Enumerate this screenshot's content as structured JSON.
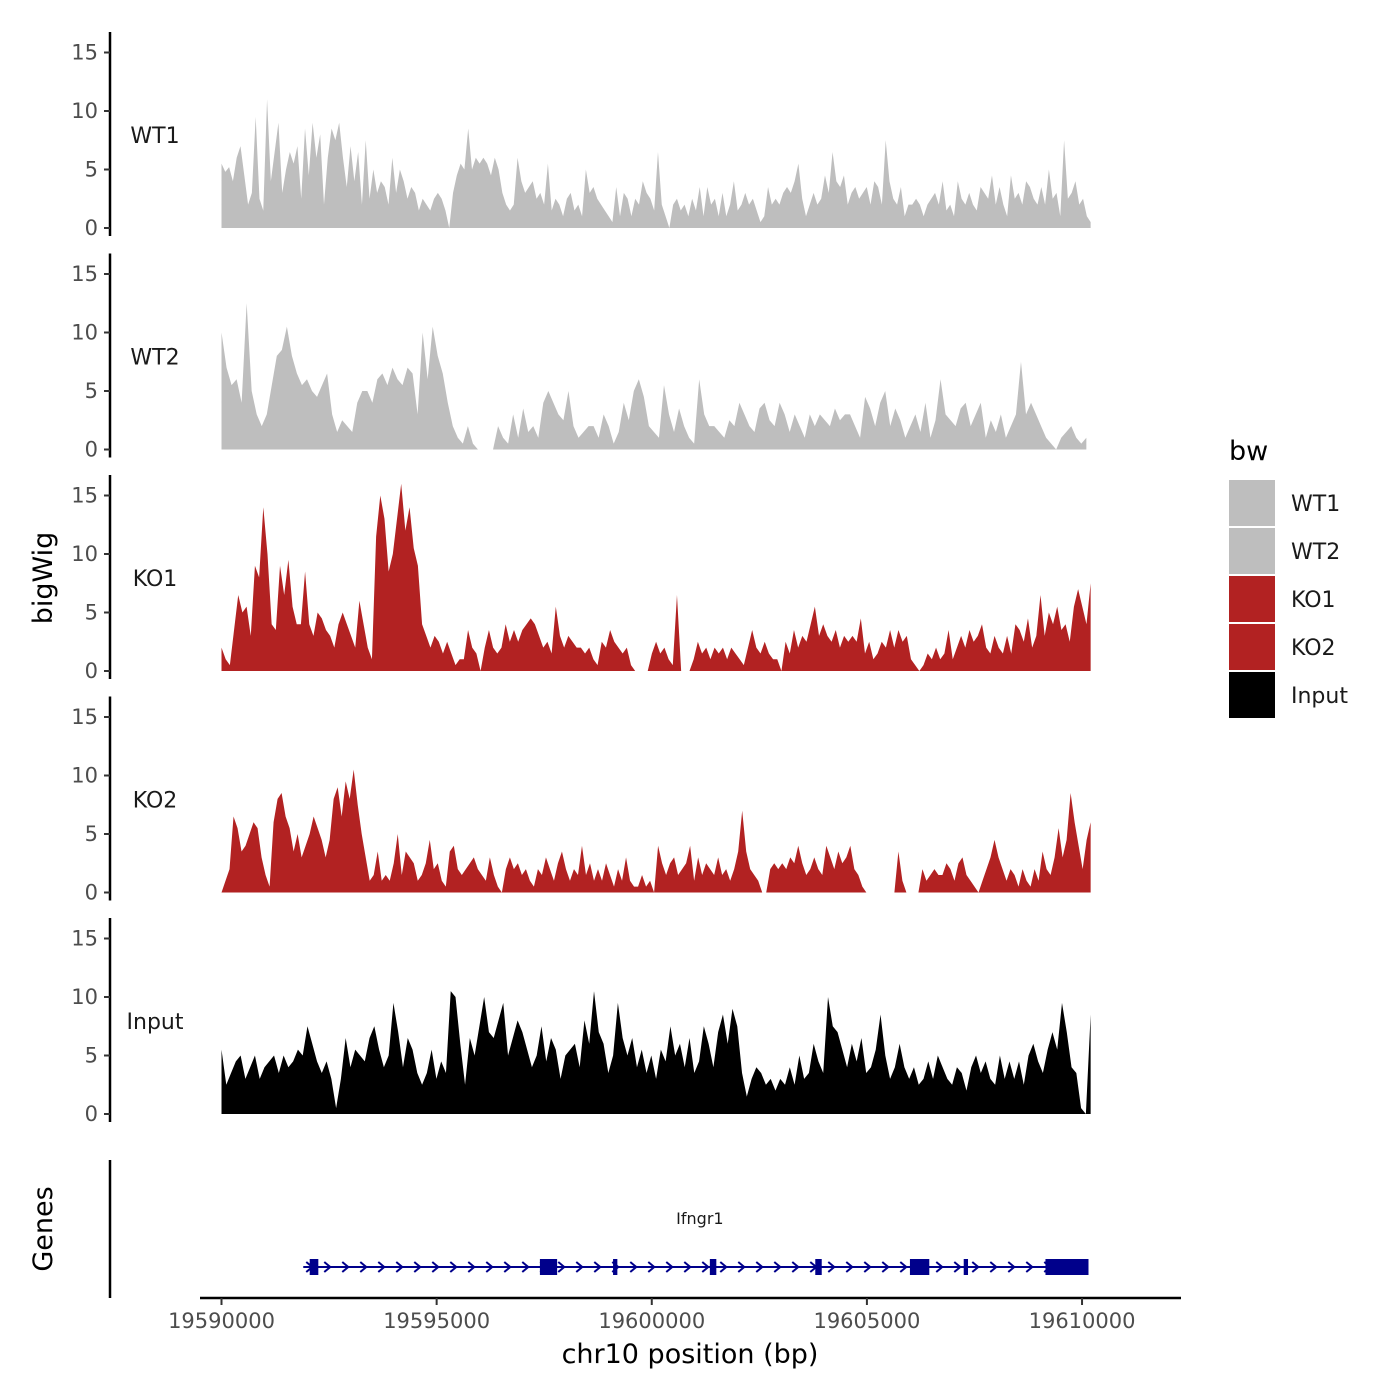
{
  "chart_data": {
    "type": "area",
    "region": "chr10",
    "xlabel": "chr10 position (bp)",
    "ylabel": "bigWig",
    "genes_panel_label": "Genes",
    "xlim": [
      19589500,
      19612300
    ],
    "x_ticks": [
      19590000,
      19595000,
      19600000,
      19605000,
      19610000
    ],
    "x_tick_labels": [
      "19590000",
      "19595000",
      "19600000",
      "19605000",
      "19610000"
    ],
    "ylim": [
      0,
      16.5
    ],
    "y_ticks": [
      0,
      5,
      10,
      15
    ],
    "y_tick_labels": [
      "0",
      "5",
      "10",
      "15"
    ],
    "grid": false,
    "legend": {
      "title": "bw",
      "position": "right",
      "entries": [
        {
          "label": "WT1",
          "color": "#bebebe"
        },
        {
          "label": "WT2",
          "color": "#bebebe"
        },
        {
          "label": "KO1",
          "color": "#b22222"
        },
        {
          "label": "KO2",
          "color": "#b22222"
        },
        {
          "label": "Input",
          "color": "#000000"
        }
      ]
    },
    "series": [
      {
        "name": "WT1",
        "color": "#bebebe",
        "x_start": 19590000,
        "x_end": 19610200,
        "values": [
          5.5,
          4.8,
          5.2,
          4.0,
          6.0,
          7.0,
          4.5,
          2.0,
          3.0,
          9.5,
          2.5,
          1.5,
          11.0,
          4.0,
          6.5,
          9.0,
          3.0,
          5.0,
          6.5,
          5.5,
          7.0,
          2.5,
          8.5,
          4.5,
          9.0,
          6.0,
          8.0,
          2.0,
          6.0,
          8.5,
          7.5,
          9.0,
          6.0,
          3.5,
          7.0,
          4.0,
          6.5,
          2.0,
          7.5,
          2.5,
          5.0,
          3.0,
          4.0,
          3.5,
          2.0,
          6.0,
          3.0,
          5.0,
          4.0,
          2.5,
          3.5,
          3.0,
          1.5,
          2.5,
          2.0,
          1.5,
          2.5,
          3.0,
          2.5,
          1.5,
          0.0,
          3.0,
          4.5,
          5.5,
          5.0,
          8.5,
          5.0,
          6.0,
          5.5,
          6.0,
          5.5,
          4.5,
          6.0,
          5.0,
          3.0,
          2.0,
          1.5,
          2.0,
          6.0,
          4.0,
          3.0,
          3.5,
          4.0,
          2.5,
          3.0,
          2.0,
          5.5,
          1.5,
          2.5,
          2.0,
          1.0,
          2.5,
          3.0,
          1.5,
          2.0,
          1.0,
          5.0,
          3.0,
          3.5,
          2.5,
          2.0,
          1.5,
          1.0,
          0.5,
          3.5,
          1.0,
          3.0,
          2.5,
          1.0,
          2.5,
          2.0,
          4.0,
          3.0,
          2.5,
          1.5,
          6.5,
          2.0,
          1.0,
          0.0,
          2.0,
          2.5,
          1.5,
          2.0,
          1.0,
          2.5,
          1.5,
          3.5,
          1.0,
          3.5,
          2.0,
          2.5,
          1.0,
          3.0,
          1.0,
          2.0,
          4.0,
          1.5,
          2.0,
          3.0,
          2.0,
          2.5,
          1.5,
          0.5,
          1.0,
          3.5,
          2.0,
          2.5,
          2.0,
          3.0,
          3.5,
          3.0,
          4.0,
          5.5,
          2.5,
          1.0,
          2.0,
          3.0,
          2.0,
          2.5,
          4.5,
          3.0,
          6.5,
          4.0,
          3.5,
          4.5,
          2.0,
          3.0,
          3.5,
          2.5,
          3.0,
          3.5,
          2.0,
          4.0,
          3.5,
          2.0,
          7.5,
          4.0,
          2.5,
          2.0,
          3.5,
          1.0,
          2.0,
          2.0,
          2.5,
          2.0,
          1.0,
          2.0,
          2.5,
          3.0,
          2.0,
          4.0,
          1.5,
          2.0,
          1.0,
          4.0,
          2.5,
          2.0,
          3.0,
          2.0,
          1.5,
          3.5,
          3.0,
          2.5,
          4.5,
          2.0,
          3.5,
          2.0,
          1.0,
          4.5,
          2.5,
          3.0,
          2.0,
          4.0,
          3.5,
          2.5,
          2.0,
          3.5,
          2.0,
          5.0,
          2.5,
          3.0,
          1.0,
          7.5,
          2.5,
          3.0,
          4.0,
          2.0,
          2.5,
          1.0,
          0.5
        ]
      },
      {
        "name": "WT2",
        "color": "#bebebe",
        "x_start": 19590000,
        "x_end": 19610100,
        "values": [
          10.0,
          7.0,
          5.5,
          6.0,
          4.0,
          12.5,
          5.0,
          3.0,
          2.0,
          3.0,
          5.5,
          8.0,
          8.5,
          10.5,
          8.0,
          6.5,
          5.5,
          6.0,
          5.0,
          4.5,
          5.5,
          6.5,
          3.0,
          1.5,
          2.5,
          2.0,
          1.5,
          4.0,
          5.0,
          5.0,
          4.0,
          6.0,
          6.5,
          5.5,
          7.0,
          6.0,
          5.5,
          7.0,
          6.5,
          3.0,
          10.0,
          6.0,
          10.5,
          8.0,
          6.5,
          4.0,
          2.0,
          1.0,
          0.5,
          2.0,
          0.5,
          0.0,
          0.0,
          0.0,
          0.0,
          2.0,
          1.0,
          0.5,
          3.0,
          1.0,
          3.5,
          1.5,
          2.0,
          1.0,
          4.0,
          5.0,
          4.0,
          3.0,
          2.5,
          5.0,
          2.0,
          1.0,
          1.5,
          2.0,
          2.0,
          1.0,
          3.0,
          2.0,
          0.5,
          1.5,
          4.0,
          2.5,
          5.0,
          6.0,
          4.5,
          2.0,
          1.5,
          1.0,
          5.5,
          3.0,
          1.5,
          3.5,
          2.0,
          1.0,
          0.5,
          6.0,
          3.0,
          2.0,
          2.0,
          1.5,
          1.0,
          2.5,
          2.0,
          4.0,
          3.0,
          2.0,
          1.5,
          3.5,
          4.0,
          2.5,
          2.0,
          4.0,
          3.0,
          1.5,
          3.0,
          2.0,
          1.0,
          3.0,
          2.0,
          3.0,
          2.5,
          2.0,
          3.5,
          2.5,
          3.0,
          3.0,
          2.0,
          1.0,
          4.5,
          3.5,
          2.0,
          4.0,
          5.0,
          2.0,
          3.5,
          2.5,
          1.0,
          2.0,
          3.0,
          1.5,
          4.0,
          1.0,
          2.5,
          6.0,
          3.0,
          2.5,
          2.0,
          3.5,
          4.0,
          2.0,
          3.0,
          4.0,
          1.0,
          2.5,
          1.5,
          3.0,
          1.0,
          2.0,
          3.0,
          7.5,
          3.0,
          4.0,
          3.0,
          2.0,
          1.0,
          0.5,
          0.0,
          1.0,
          1.5,
          2.0,
          1.0,
          0.5,
          1.0
        ]
      },
      {
        "name": "KO1",
        "color": "#b22222",
        "x_start": 19590000,
        "x_end": 19610200,
        "values": [
          2.0,
          1.0,
          0.5,
          3.5,
          6.5,
          5.0,
          5.5,
          3.0,
          9.0,
          8.0,
          14.0,
          10.0,
          4.0,
          3.5,
          9.0,
          6.5,
          9.5,
          5.5,
          4.0,
          4.0,
          8.5,
          4.0,
          3.0,
          5.0,
          4.5,
          3.5,
          3.0,
          2.0,
          4.0,
          5.0,
          4.0,
          3.0,
          2.0,
          6.0,
          4.0,
          2.0,
          1.0,
          11.5,
          15.0,
          13.0,
          8.5,
          10.0,
          13.0,
          16.0,
          12.0,
          14.0,
          10.5,
          9.0,
          4.0,
          3.0,
          2.0,
          3.0,
          2.5,
          1.5,
          2.5,
          1.5,
          0.5,
          1.0,
          1.0,
          3.5,
          2.0,
          1.5,
          0.0,
          2.0,
          3.5,
          2.0,
          1.5,
          2.0,
          4.0,
          2.5,
          3.5,
          2.5,
          3.5,
          4.0,
          4.5,
          4.0,
          3.0,
          2.0,
          2.5,
          1.5,
          5.5,
          3.0,
          2.0,
          3.0,
          2.5,
          2.0,
          2.0,
          1.5,
          2.0,
          1.0,
          0.5,
          2.5,
          2.0,
          3.5,
          2.5,
          2.0,
          1.5,
          2.0,
          0.5,
          0.0,
          0.0,
          0.0,
          0.0,
          1.5,
          2.5,
          1.5,
          2.0,
          1.0,
          0.5,
          6.5,
          0.0,
          0.0,
          0.0,
          1.0,
          2.5,
          1.5,
          2.0,
          1.0,
          2.0,
          1.5,
          2.0,
          1.0,
          2.0,
          1.5,
          1.0,
          0.5,
          2.0,
          3.5,
          2.0,
          1.5,
          2.5,
          1.5,
          1.0,
          1.0,
          0.0,
          2.5,
          1.5,
          3.5,
          2.0,
          3.0,
          2.5,
          4.0,
          5.5,
          3.0,
          4.0,
          3.0,
          2.5,
          3.5,
          2.0,
          3.0,
          2.5,
          3.0,
          2.5,
          4.5,
          1.5,
          2.5,
          1.0,
          1.5,
          2.5,
          2.0,
          3.5,
          2.0,
          3.5,
          2.5,
          3.0,
          1.0,
          0.5,
          0.0,
          0.5,
          1.5,
          1.0,
          2.0,
          1.0,
          1.5,
          3.5,
          1.0,
          2.0,
          3.0,
          2.0,
          3.5,
          2.5,
          3.0,
          4.0,
          2.0,
          1.5,
          3.0,
          2.0,
          1.5,
          3.0,
          1.5,
          4.0,
          3.5,
          2.5,
          4.5,
          2.0,
          3.0,
          6.5,
          3.0,
          5.0,
          4.0,
          5.5,
          3.5,
          4.0,
          2.5,
          5.5,
          7.0,
          5.5,
          4.0,
          7.5
        ]
      },
      {
        "name": "KO2",
        "color": "#b22222",
        "x_start": 19590000,
        "x_end": 19610200,
        "values": [
          0.0,
          1.0,
          2.0,
          6.5,
          5.5,
          3.5,
          4.0,
          5.0,
          6.0,
          5.5,
          3.0,
          1.5,
          0.5,
          6.0,
          8.0,
          8.5,
          6.5,
          5.5,
          3.5,
          5.0,
          3.0,
          4.0,
          5.0,
          6.5,
          5.5,
          4.5,
          3.0,
          4.5,
          8.0,
          9.0,
          6.5,
          9.5,
          8.0,
          10.5,
          7.5,
          5.0,
          3.0,
          1.0,
          1.5,
          3.5,
          1.0,
          1.5,
          1.0,
          2.5,
          5.0,
          1.5,
          3.5,
          3.0,
          2.5,
          1.0,
          1.5,
          2.5,
          4.5,
          2.0,
          2.5,
          1.0,
          0.5,
          3.5,
          4.0,
          2.0,
          1.5,
          2.0,
          2.5,
          3.0,
          2.0,
          1.5,
          1.0,
          3.0,
          1.5,
          0.5,
          0.0,
          2.0,
          3.0,
          2.0,
          2.5,
          1.5,
          2.0,
          1.0,
          0.5,
          2.0,
          1.5,
          3.0,
          2.0,
          1.0,
          2.5,
          3.5,
          2.0,
          1.0,
          2.0,
          1.5,
          4.0,
          1.5,
          2.5,
          1.0,
          2.0,
          1.0,
          2.5,
          1.5,
          0.5,
          2.0,
          1.0,
          3.0,
          1.0,
          0.5,
          0.5,
          1.5,
          0.5,
          1.0,
          0.0,
          4.0,
          2.5,
          1.5,
          2.5,
          3.0,
          1.5,
          2.0,
          2.5,
          4.0,
          1.0,
          3.0,
          1.5,
          2.5,
          2.0,
          1.5,
          3.0,
          1.5,
          2.0,
          1.0,
          2.0,
          3.5,
          7.0,
          3.5,
          2.0,
          1.5,
          1.0,
          0.0,
          0.0,
          2.0,
          2.5,
          2.0,
          2.5,
          2.0,
          3.0,
          2.5,
          4.0,
          2.5,
          1.5,
          2.0,
          3.0,
          2.0,
          1.5,
          4.0,
          3.0,
          2.0,
          3.5,
          2.5,
          3.0,
          4.0,
          2.0,
          1.5,
          0.5,
          0.0,
          0.0,
          0.0,
          0.0,
          0.0,
          0.0,
          0.0,
          0.0,
          3.5,
          1.0,
          0.0,
          0.0,
          0.0,
          0.0,
          2.0,
          1.0,
          1.5,
          2.0,
          1.5,
          1.5,
          2.5,
          2.0,
          1.0,
          2.5,
          3.0,
          1.5,
          1.0,
          0.5,
          0.0,
          1.0,
          2.0,
          3.0,
          4.5,
          3.0,
          2.0,
          1.0,
          2.0,
          1.5,
          0.5,
          2.0,
          1.0,
          0.5,
          2.0,
          1.0,
          3.5,
          2.0,
          1.5,
          3.0,
          5.5,
          3.0,
          4.5,
          8.5,
          6.0,
          4.0,
          2.0,
          4.5,
          6.0
        ]
      },
      {
        "name": "Input",
        "color": "#000000",
        "x_start": 19590000,
        "x_end": 19610200,
        "values": [
          5.5,
          2.5,
          3.5,
          4.5,
          5.0,
          3.0,
          4.0,
          5.0,
          3.0,
          4.0,
          4.5,
          5.0,
          3.5,
          5.0,
          4.0,
          4.5,
          5.5,
          5.0,
          7.5,
          6.0,
          4.5,
          3.5,
          4.5,
          3.0,
          0.5,
          3.0,
          6.5,
          4.0,
          5.5,
          5.0,
          4.5,
          6.5,
          7.5,
          5.5,
          4.0,
          5.0,
          9.5,
          7.0,
          4.0,
          6.5,
          5.5,
          3.5,
          2.5,
          3.5,
          5.5,
          3.0,
          4.5,
          3.5,
          10.5,
          10.0,
          6.0,
          2.5,
          6.5,
          5.0,
          7.5,
          10.0,
          7.0,
          6.5,
          8.0,
          9.5,
          5.0,
          6.5,
          8.0,
          7.0,
          5.5,
          4.0,
          5.0,
          7.5,
          4.5,
          6.5,
          5.5,
          3.0,
          5.0,
          5.5,
          6.0,
          4.0,
          8.0,
          6.0,
          10.5,
          7.0,
          6.0,
          3.5,
          5.0,
          9.5,
          6.5,
          5.0,
          6.5,
          4.0,
          5.5,
          3.5,
          5.0,
          3.0,
          5.5,
          4.5,
          7.5,
          5.0,
          6.0,
          4.0,
          6.5,
          3.5,
          4.5,
          7.5,
          6.0,
          4.0,
          7.0,
          8.5,
          6.0,
          9.0,
          7.5,
          3.5,
          1.5,
          3.0,
          4.0,
          3.5,
          2.5,
          3.0,
          2.0,
          3.0,
          2.5,
          4.0,
          2.5,
          5.0,
          3.0,
          3.5,
          6.0,
          4.5,
          3.5,
          10.0,
          7.5,
          7.0,
          5.5,
          4.0,
          6.0,
          4.5,
          6.5,
          3.5,
          4.0,
          5.5,
          8.5,
          5.0,
          3.0,
          4.0,
          6.0,
          4.0,
          3.0,
          4.0,
          2.5,
          3.0,
          4.5,
          3.0,
          5.0,
          4.0,
          3.0,
          2.5,
          4.0,
          3.5,
          2.0,
          4.0,
          5.0,
          3.5,
          4.5,
          3.0,
          2.5,
          5.0,
          3.0,
          4.5,
          3.0,
          4.5,
          2.5,
          5.0,
          6.0,
          4.5,
          3.5,
          5.5,
          7.0,
          5.5,
          9.5,
          7.0,
          4.0,
          3.5,
          0.5,
          0.0,
          8.5
        ]
      }
    ],
    "genes": [
      {
        "name": "Ifngr1",
        "strand": "+",
        "start": 19591900,
        "end": 19610150,
        "exons": [
          [
            19592050,
            19592250
          ],
          [
            19597400,
            19597800
          ],
          [
            19599100,
            19599200
          ],
          [
            19601350,
            19601500
          ],
          [
            19603800,
            19603950
          ],
          [
            19606000,
            19606450
          ],
          [
            19607250,
            19607350
          ],
          [
            19609150,
            19610150
          ]
        ]
      }
    ]
  }
}
